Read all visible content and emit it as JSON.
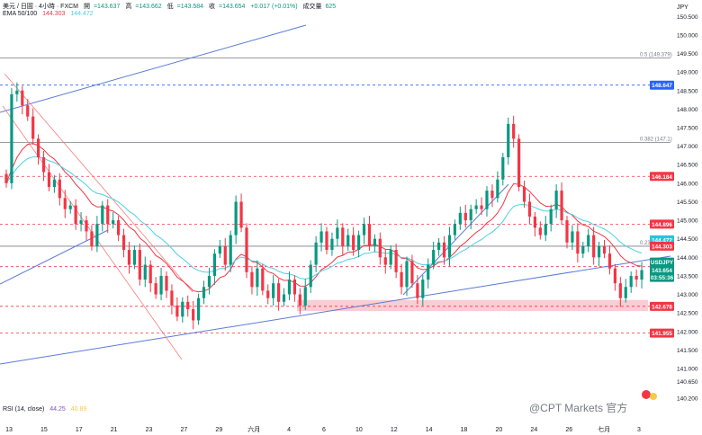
{
  "header": {
    "symbol_line": "美元 / 日圓 · 4小時 · FXCM",
    "open_label": "開",
    "open": "=143.637",
    "high_label": "高",
    "high": "=143.662",
    "low_label": "低",
    "low": "=143.584",
    "close_label": "收",
    "close": "=143.654",
    "change": "+0.017 (+0.01%)",
    "volume_label": "成交量",
    "volume": "625",
    "ema_label": "EMA 50/100",
    "ema_fast": "144.303",
    "ema_slow": "144.472",
    "rsi_label": "RSI (14, close)",
    "rsi_a": "44.25",
    "rsi_b": "40.89"
  },
  "watermark": "@CPT Markets 官方",
  "colors": {
    "up": "#089981",
    "down": "#f23645",
    "ema_fast": "#f23645",
    "ema_slow": "#4dd0e1",
    "trendline": "#5b7bd6",
    "channel": "#f77c80",
    "fib": "#787b86",
    "zone": "#f8c4cc"
  },
  "chart_data": {
    "type": "candlestick",
    "currency": "JPY",
    "y_ticks": [
      "150.500",
      "150.000",
      "149.500",
      "149.000",
      "148.500",
      "148.000",
      "147.500",
      "147.000",
      "146.500",
      "146.000",
      "145.500",
      "145.000",
      "144.500",
      "144.000",
      "143.500",
      "143.000",
      "142.500",
      "142.000",
      "141.500",
      "141.000",
      "140.650",
      "140.200"
    ],
    "ylim": [
      140.2,
      150.75
    ],
    "x_ticks": [
      "13",
      "15",
      "17",
      "21",
      "23",
      "27",
      "29",
      "六月",
      "4",
      "6",
      "10",
      "12",
      "14",
      "18",
      "20",
      "24",
      "26",
      "七月",
      "3"
    ],
    "price_badges": [
      {
        "value": "148.647",
        "color": "#2962ff"
      },
      {
        "value": "146.184",
        "color": "#f23645"
      },
      {
        "value": "144.896",
        "color": "#f23645"
      },
      {
        "value": "144.472",
        "color": "#26c6da"
      },
      {
        "value": "144.303",
        "color": "#f23645"
      },
      {
        "value": "143.749",
        "color": "#f23645"
      },
      {
        "value": "USDJPY",
        "color": "#089981"
      },
      {
        "value": "143.654",
        "color": "#089981"
      },
      {
        "value": "03:55:36",
        "color": "#089981"
      },
      {
        "value": "142.678",
        "color": "#f23645"
      },
      {
        "value": "141.955",
        "color": "#f23645"
      }
    ],
    "fib_labels": [
      {
        "text": "0.5 (149.379)",
        "value": 149.379
      },
      {
        "text": "0.382 (147.1)",
        "value": 147.1
      },
      {
        "text": "0.236 (144.3)",
        "value": 144.3
      }
    ],
    "horizontal_lines": [
      {
        "value": 148.647,
        "style": "dashed",
        "color": "#2962ff"
      },
      {
        "value": 146.184,
        "style": "dashed",
        "color": "#f23645"
      },
      {
        "value": 144.896,
        "style": "dashed",
        "color": "#f23645"
      },
      {
        "value": 143.749,
        "style": "dashed",
        "color": "#f23645"
      },
      {
        "value": 142.678,
        "style": "dashed",
        "color": "#f23645"
      },
      {
        "value": 141.955,
        "style": "dashed",
        "color": "#f23645"
      }
    ],
    "support_zone": [
      142.55,
      142.85
    ],
    "closes": [
      146.0,
      148.4,
      148.5,
      148.1,
      147.8,
      147.2,
      146.7,
      146.3,
      145.9,
      146.1,
      145.6,
      145.3,
      145.4,
      144.9,
      145.0,
      144.7,
      144.3,
      144.9,
      145.4,
      144.9,
      145.0,
      144.6,
      144.2,
      143.8,
      144.2,
      143.4,
      143.8,
      143.3,
      143.0,
      143.5,
      143.1,
      142.7,
      142.4,
      142.8,
      142.6,
      142.3,
      142.9,
      143.2,
      143.5,
      144.1,
      144.3,
      143.8,
      144.6,
      145.5,
      144.8,
      143.6,
      143.2,
      143.7,
      143.1,
      142.9,
      143.3,
      142.8,
      143.0,
      143.4,
      143.0,
      142.7,
      143.2,
      143.8,
      144.4,
      144.7,
      144.2,
      144.5,
      144.8,
      144.3,
      144.6,
      144.2,
      144.6,
      144.9,
      144.3,
      144.5,
      144.0,
      143.8,
      144.2,
      143.6,
      143.2,
      143.9,
      143.3,
      142.9,
      143.4,
      143.8,
      144.2,
      144.4,
      144.0,
      144.6,
      144.9,
      145.2,
      145.0,
      145.3,
      145.4,
      145.3,
      145.8,
      145.6,
      146.1,
      146.7,
      147.6,
      147.2,
      145.9,
      145.5,
      145.1,
      144.8,
      144.6,
      144.9,
      145.3,
      145.8,
      145.0,
      144.4,
      144.7,
      144.1,
      144.3,
      144.6,
      144.0,
      144.3,
      144.1,
      143.7,
      143.3,
      142.9,
      143.2,
      143.5,
      143.4,
      143.654
    ]
  }
}
